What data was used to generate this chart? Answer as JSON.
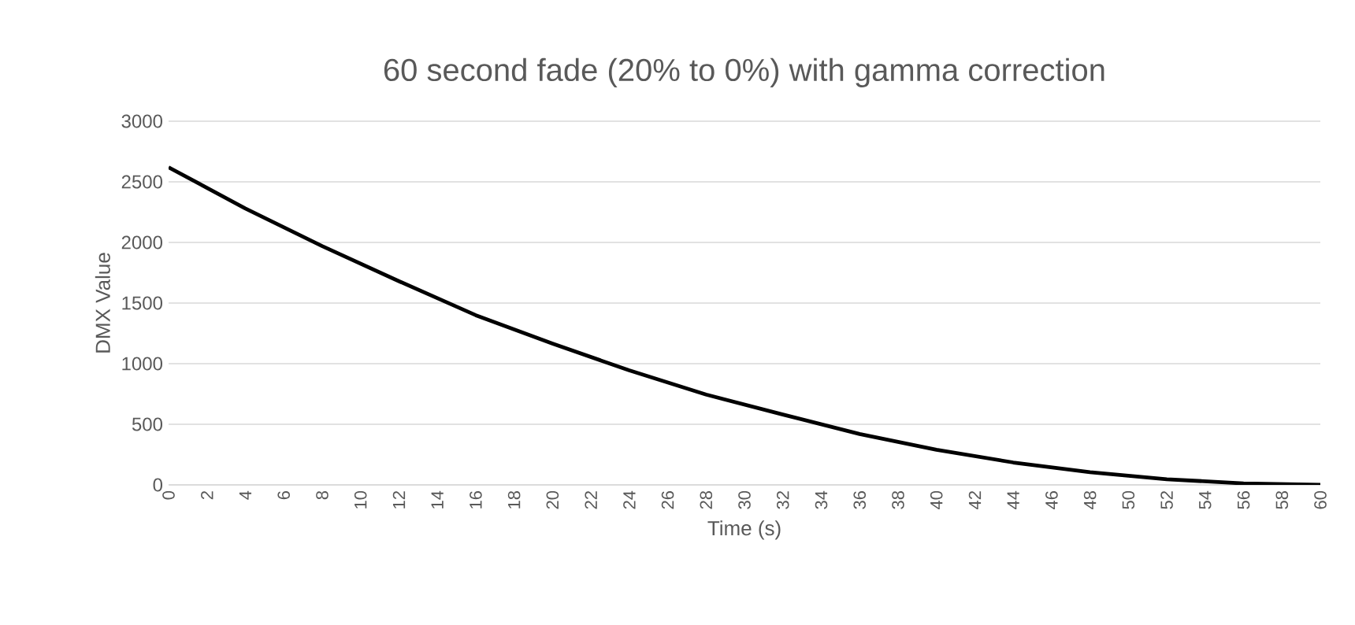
{
  "chart_data": {
    "type": "line",
    "title": "60 second fade (20% to 0%) with gamma correction",
    "xlabel": "Time (s)",
    "ylabel": "DMX Value",
    "x": [
      0,
      4,
      8,
      12,
      16,
      20,
      24,
      28,
      32,
      36,
      40,
      44,
      48,
      52,
      56,
      60
    ],
    "series": [
      {
        "color": "#000000",
        "values": [
          2620,
          2280,
          1970,
          1680,
          1400,
          1165,
          945,
          745,
          580,
          420,
          290,
          185,
          105,
          47,
          12,
          0
        ]
      }
    ],
    "xlim": [
      0,
      60
    ],
    "xticks": [
      0,
      2,
      4,
      6,
      8,
      10,
      12,
      14,
      16,
      18,
      20,
      22,
      24,
      26,
      28,
      30,
      32,
      34,
      36,
      38,
      40,
      42,
      44,
      46,
      48,
      50,
      52,
      54,
      56,
      58,
      60
    ],
    "ylim": [
      0,
      3000
    ],
    "yticks": [
      0,
      500,
      1000,
      1500,
      2000,
      2500,
      3000
    ],
    "grid": "y",
    "marker": "none",
    "line_style": "solid"
  }
}
